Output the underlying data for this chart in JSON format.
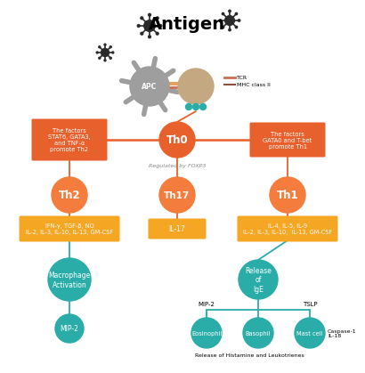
{
  "title": "Antigen",
  "background_color": "#ffffff",
  "orange_circle_color": "#F47C3C",
  "orange_dark_circle_color": "#E8602C",
  "teal_circle_color": "#2AADA8",
  "orange_box_color": "#F5A623",
  "red_box_color": "#E8602C",
  "line_color_orange": "#E8602C",
  "line_color_teal": "#2AADA8",
  "apc_color": "#9E9E9E",
  "tcell_color": "#C4A882",
  "virus_color": "#2a2a2a",
  "labels": {
    "Th0": "Th0",
    "Th2": "Th2",
    "Th17": "Th17",
    "Th1": "Th1",
    "Macrophage": "Macrophage\nActivation",
    "MIP2_bottom": "MIP-2",
    "Release_IgE": "Release\nof\nIgE",
    "Eosinophil": "Eosinophil",
    "Basophil": "Basophil",
    "Mast_cell": "Mast cell"
  },
  "th2_box_text": "IFN-γ, TGF-β, NO\nIL-2, IL-3, IL-10, IL-13, GM-CSF",
  "th17_box_text": "IL-17",
  "th1_box_text": "IL-4, IL-5, IL-9\nIL-2, IL-3, IL-10,  IL-13, GM-CSF",
  "left_factor_text": "The factors\nSTAT6, GATA3,\nand TNF-α\npromote Th2",
  "right_factor_text": "The factors\nGATA0 and T-bet\npromote Th1",
  "foxp3_text": "Regulated by FOXP3",
  "mip2_label": "MIP-2",
  "tslp_label": "TSLP",
  "caspase_text": "Caspase-1\nIL-18",
  "bottom_text": "Release of Histamine and Leukotrienes",
  "tcr_text": "TCR",
  "mhc_text": "MHC class II"
}
